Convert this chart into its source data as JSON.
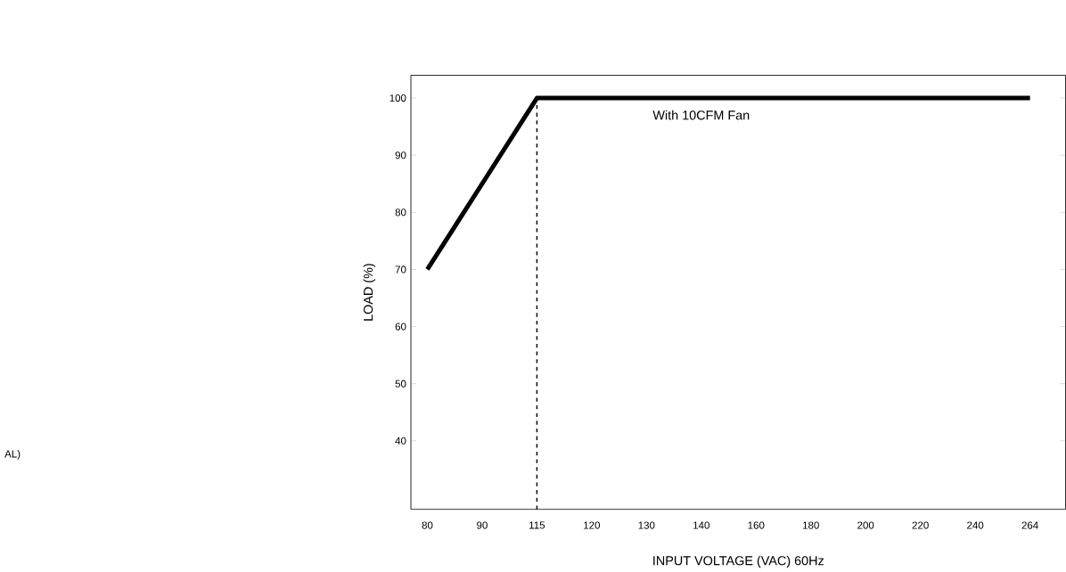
{
  "chart_data": {
    "type": "line",
    "categories": [
      "80",
      "90",
      "115",
      "120",
      "130",
      "140",
      "160",
      "180",
      "200",
      "220",
      "240",
      "264"
    ],
    "values": [
      70,
      85,
      100,
      100,
      100,
      100,
      100,
      100,
      100,
      100,
      100,
      100
    ],
    "color": "#000000",
    "xlabel": "INPUT VOLTAGE (VAC) 60Hz",
    "ylabel": "LOAD (%)",
    "ylim": [
      28,
      104
    ],
    "yticks": [
      40,
      50,
      60,
      70,
      80,
      90,
      100
    ],
    "ref_lines": [
      {
        "axis": "x",
        "value": "115",
        "line_style": "dashed",
        "color": "#000000"
      }
    ],
    "annotations": [
      {
        "text": "With 10CFM Fan",
        "x": "140",
        "y": 100
      },
      "AL)"
    ]
  }
}
